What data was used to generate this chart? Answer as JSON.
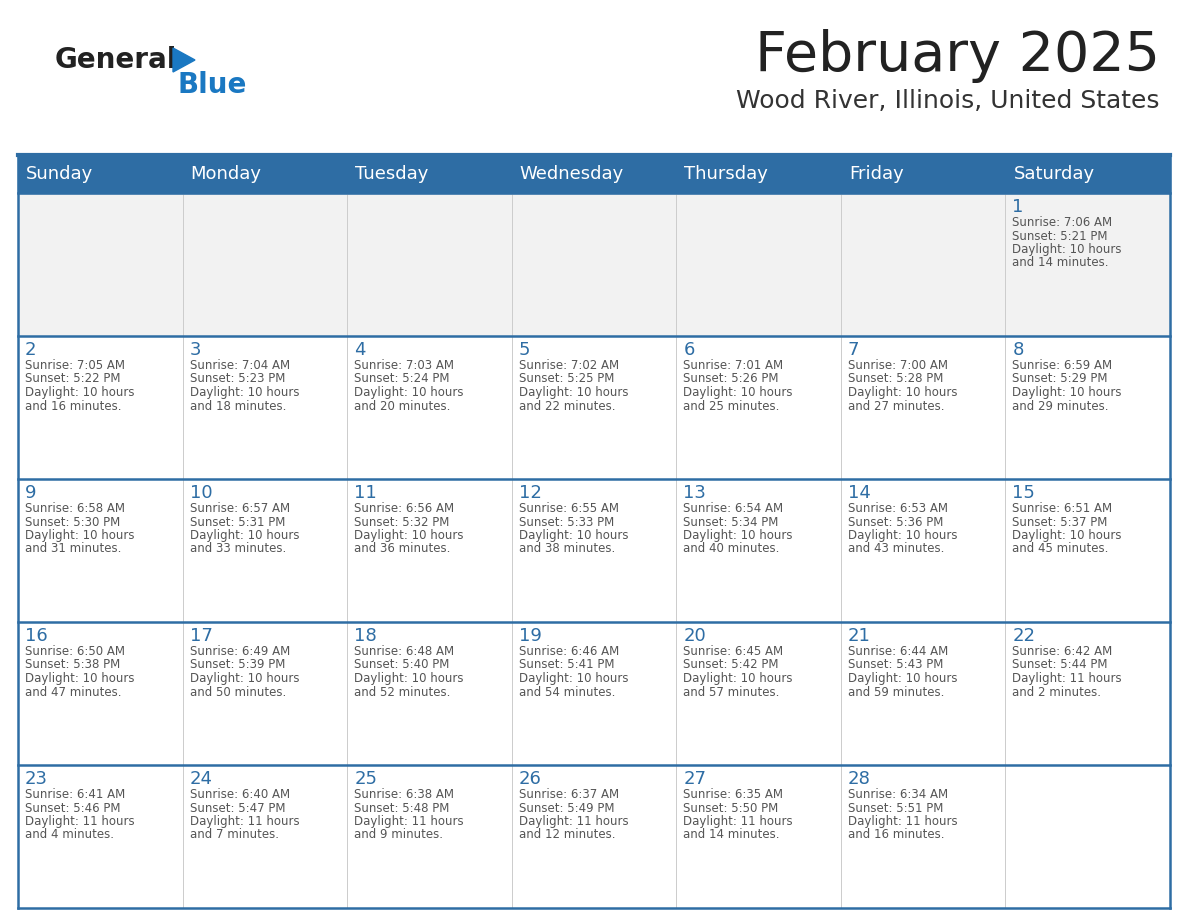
{
  "title": "February 2025",
  "subtitle": "Wood River, Illinois, United States",
  "header_bg": "#2E6DA4",
  "header_text_color": "#FFFFFF",
  "days_of_week": [
    "Sunday",
    "Monday",
    "Tuesday",
    "Wednesday",
    "Thursday",
    "Friday",
    "Saturday"
  ],
  "cell_bg_white": "#FFFFFF",
  "cell_bg_gray": "#F2F2F2",
  "grid_line_color": "#2E6DA4",
  "day_number_color": "#2E6DA4",
  "info_text_color": "#555555",
  "title_color": "#222222",
  "subtitle_color": "#333333",
  "logo_general_color": "#222222",
  "logo_blue_color": "#1A78C2",
  "weeks": [
    [
      {
        "day": null,
        "info": ""
      },
      {
        "day": null,
        "info": ""
      },
      {
        "day": null,
        "info": ""
      },
      {
        "day": null,
        "info": ""
      },
      {
        "day": null,
        "info": ""
      },
      {
        "day": null,
        "info": ""
      },
      {
        "day": 1,
        "info": "Sunrise: 7:06 AM\nSunset: 5:21 PM\nDaylight: 10 hours\nand 14 minutes."
      }
    ],
    [
      {
        "day": 2,
        "info": "Sunrise: 7:05 AM\nSunset: 5:22 PM\nDaylight: 10 hours\nand 16 minutes."
      },
      {
        "day": 3,
        "info": "Sunrise: 7:04 AM\nSunset: 5:23 PM\nDaylight: 10 hours\nand 18 minutes."
      },
      {
        "day": 4,
        "info": "Sunrise: 7:03 AM\nSunset: 5:24 PM\nDaylight: 10 hours\nand 20 minutes."
      },
      {
        "day": 5,
        "info": "Sunrise: 7:02 AM\nSunset: 5:25 PM\nDaylight: 10 hours\nand 22 minutes."
      },
      {
        "day": 6,
        "info": "Sunrise: 7:01 AM\nSunset: 5:26 PM\nDaylight: 10 hours\nand 25 minutes."
      },
      {
        "day": 7,
        "info": "Sunrise: 7:00 AM\nSunset: 5:28 PM\nDaylight: 10 hours\nand 27 minutes."
      },
      {
        "day": 8,
        "info": "Sunrise: 6:59 AM\nSunset: 5:29 PM\nDaylight: 10 hours\nand 29 minutes."
      }
    ],
    [
      {
        "day": 9,
        "info": "Sunrise: 6:58 AM\nSunset: 5:30 PM\nDaylight: 10 hours\nand 31 minutes."
      },
      {
        "day": 10,
        "info": "Sunrise: 6:57 AM\nSunset: 5:31 PM\nDaylight: 10 hours\nand 33 minutes."
      },
      {
        "day": 11,
        "info": "Sunrise: 6:56 AM\nSunset: 5:32 PM\nDaylight: 10 hours\nand 36 minutes."
      },
      {
        "day": 12,
        "info": "Sunrise: 6:55 AM\nSunset: 5:33 PM\nDaylight: 10 hours\nand 38 minutes."
      },
      {
        "day": 13,
        "info": "Sunrise: 6:54 AM\nSunset: 5:34 PM\nDaylight: 10 hours\nand 40 minutes."
      },
      {
        "day": 14,
        "info": "Sunrise: 6:53 AM\nSunset: 5:36 PM\nDaylight: 10 hours\nand 43 minutes."
      },
      {
        "day": 15,
        "info": "Sunrise: 6:51 AM\nSunset: 5:37 PM\nDaylight: 10 hours\nand 45 minutes."
      }
    ],
    [
      {
        "day": 16,
        "info": "Sunrise: 6:50 AM\nSunset: 5:38 PM\nDaylight: 10 hours\nand 47 minutes."
      },
      {
        "day": 17,
        "info": "Sunrise: 6:49 AM\nSunset: 5:39 PM\nDaylight: 10 hours\nand 50 minutes."
      },
      {
        "day": 18,
        "info": "Sunrise: 6:48 AM\nSunset: 5:40 PM\nDaylight: 10 hours\nand 52 minutes."
      },
      {
        "day": 19,
        "info": "Sunrise: 6:46 AM\nSunset: 5:41 PM\nDaylight: 10 hours\nand 54 minutes."
      },
      {
        "day": 20,
        "info": "Sunrise: 6:45 AM\nSunset: 5:42 PM\nDaylight: 10 hours\nand 57 minutes."
      },
      {
        "day": 21,
        "info": "Sunrise: 6:44 AM\nSunset: 5:43 PM\nDaylight: 10 hours\nand 59 minutes."
      },
      {
        "day": 22,
        "info": "Sunrise: 6:42 AM\nSunset: 5:44 PM\nDaylight: 11 hours\nand 2 minutes."
      }
    ],
    [
      {
        "day": 23,
        "info": "Sunrise: 6:41 AM\nSunset: 5:46 PM\nDaylight: 11 hours\nand 4 minutes."
      },
      {
        "day": 24,
        "info": "Sunrise: 6:40 AM\nSunset: 5:47 PM\nDaylight: 11 hours\nand 7 minutes."
      },
      {
        "day": 25,
        "info": "Sunrise: 6:38 AM\nSunset: 5:48 PM\nDaylight: 11 hours\nand 9 minutes."
      },
      {
        "day": 26,
        "info": "Sunrise: 6:37 AM\nSunset: 5:49 PM\nDaylight: 11 hours\nand 12 minutes."
      },
      {
        "day": 27,
        "info": "Sunrise: 6:35 AM\nSunset: 5:50 PM\nDaylight: 11 hours\nand 14 minutes."
      },
      {
        "day": 28,
        "info": "Sunrise: 6:34 AM\nSunset: 5:51 PM\nDaylight: 11 hours\nand 16 minutes."
      },
      {
        "day": null,
        "info": ""
      }
    ]
  ]
}
